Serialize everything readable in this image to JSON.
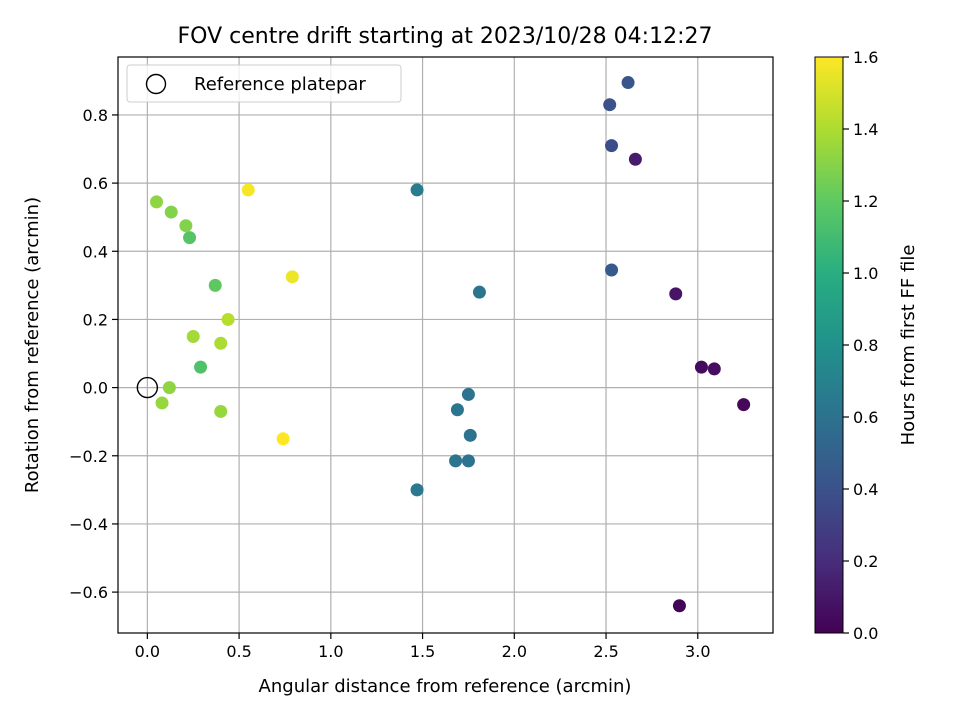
{
  "chart_data": {
    "type": "scatter",
    "title": "FOV centre drift starting at 2023/10/28 04:12:27",
    "xlabel": "Angular distance from reference (arcmin)",
    "ylabel": "Rotation from reference (arcmin)",
    "xlim": [
      -0.16,
      3.41
    ],
    "ylim": [
      -0.72,
      0.97
    ],
    "xticks": [
      0.0,
      0.5,
      1.0,
      1.5,
      2.0,
      2.5,
      3.0
    ],
    "xtick_labels": [
      "0.0",
      "0.5",
      "1.0",
      "1.5",
      "2.0",
      "2.5",
      "3.0"
    ],
    "yticks": [
      -0.6,
      -0.4,
      -0.2,
      0.0,
      0.2,
      0.4,
      0.6,
      0.8
    ],
    "ytick_labels": [
      "−0.6",
      "−0.4",
      "−0.2",
      "0.0",
      "0.2",
      "0.4",
      "0.6",
      "0.8"
    ],
    "grid": true,
    "legend": {
      "position": "top-left",
      "entries": [
        {
          "label": "Reference platepar",
          "marker": "open-circle",
          "x": 0.0,
          "y": 0.0
        }
      ]
    },
    "colorbar": {
      "label": "Hours from first FF file",
      "range": [
        0.0,
        1.6
      ],
      "ticks": [
        0.0,
        0.2,
        0.4,
        0.6,
        0.8,
        1.0,
        1.2,
        1.4,
        1.6
      ],
      "tick_labels": [
        "0.0",
        "0.2",
        "0.4",
        "0.6",
        "0.8",
        "1.0",
        "1.2",
        "1.4",
        "1.6"
      ],
      "colormap": "viridis"
    },
    "points": [
      {
        "x": 2.9,
        "y": -0.64,
        "c": 0.02
      },
      {
        "x": 3.25,
        "y": -0.05,
        "c": 0.03
      },
      {
        "x": 3.02,
        "y": 0.06,
        "c": 0.05
      },
      {
        "x": 3.09,
        "y": 0.055,
        "c": 0.06
      },
      {
        "x": 2.88,
        "y": 0.275,
        "c": 0.09
      },
      {
        "x": 2.66,
        "y": 0.67,
        "c": 0.12
      },
      {
        "x": 2.53,
        "y": 0.71,
        "c": 0.38
      },
      {
        "x": 2.52,
        "y": 0.83,
        "c": 0.4
      },
      {
        "x": 2.62,
        "y": 0.895,
        "c": 0.42
      },
      {
        "x": 2.53,
        "y": 0.345,
        "c": 0.45
      },
      {
        "x": 1.81,
        "y": 0.28,
        "c": 0.63
      },
      {
        "x": 1.75,
        "y": -0.02,
        "c": 0.6
      },
      {
        "x": 1.69,
        "y": -0.065,
        "c": 0.62
      },
      {
        "x": 1.76,
        "y": -0.14,
        "c": 0.6
      },
      {
        "x": 1.75,
        "y": -0.215,
        "c": 0.6
      },
      {
        "x": 1.68,
        "y": -0.215,
        "c": 0.62
      },
      {
        "x": 1.47,
        "y": -0.3,
        "c": 0.65
      },
      {
        "x": 1.47,
        "y": 0.58,
        "c": 0.66
      },
      {
        "x": 0.29,
        "y": 0.06,
        "c": 1.15
      },
      {
        "x": 0.23,
        "y": 0.44,
        "c": 1.17
      },
      {
        "x": 0.37,
        "y": 0.3,
        "c": 1.2
      },
      {
        "x": 0.21,
        "y": 0.475,
        "c": 1.3
      },
      {
        "x": 0.13,
        "y": 0.515,
        "c": 1.3
      },
      {
        "x": 0.05,
        "y": 0.545,
        "c": 1.33
      },
      {
        "x": 0.12,
        "y": 0.0,
        "c": 1.33
      },
      {
        "x": 0.08,
        "y": -0.045,
        "c": 1.35
      },
      {
        "x": 0.4,
        "y": -0.07,
        "c": 1.35
      },
      {
        "x": 0.25,
        "y": 0.15,
        "c": 1.38
      },
      {
        "x": 0.4,
        "y": 0.13,
        "c": 1.4
      },
      {
        "x": 0.44,
        "y": 0.2,
        "c": 1.43
      },
      {
        "x": 0.79,
        "y": 0.325,
        "c": 1.56
      },
      {
        "x": 0.55,
        "y": 0.58,
        "c": 1.58
      },
      {
        "x": 0.74,
        "y": -0.15,
        "c": 1.6
      }
    ]
  }
}
